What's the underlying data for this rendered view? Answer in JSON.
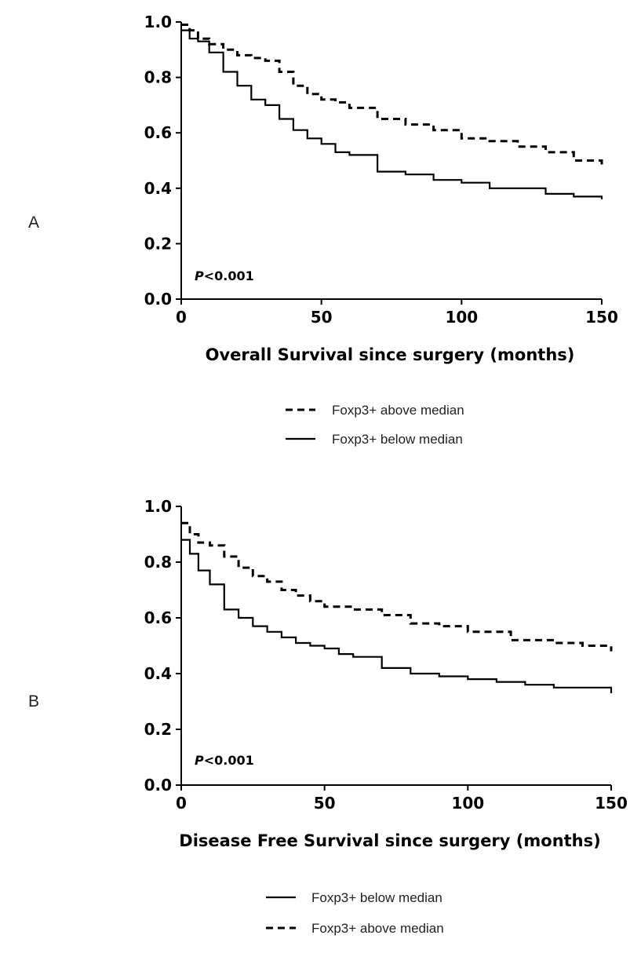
{
  "chart_data": [
    {
      "type": "line",
      "panel": "A",
      "xlabel": "Overall Survival since surgery (months)",
      "ylabel": "",
      "xlim": [
        0,
        150
      ],
      "ylim": [
        0,
        1.0
      ],
      "x_ticks": [
        "0",
        "50",
        "100",
        "150"
      ],
      "y_ticks": [
        "0.0",
        "0.2",
        "0.4",
        "0.6",
        "0.8",
        "1.0"
      ],
      "annotation": {
        "p_italic": "P",
        "p_value": "<0.001"
      },
      "legend_position": "below",
      "series": [
        {
          "name": "Foxp3+ above median",
          "style": "dashed",
          "x": [
            0,
            3,
            6,
            10,
            15,
            20,
            25,
            30,
            35,
            40,
            45,
            50,
            55,
            60,
            70,
            80,
            90,
            100,
            110,
            120,
            130,
            140,
            150
          ],
          "y": [
            0.99,
            0.97,
            0.94,
            0.92,
            0.9,
            0.88,
            0.87,
            0.86,
            0.82,
            0.77,
            0.74,
            0.72,
            0.71,
            0.69,
            0.65,
            0.63,
            0.61,
            0.58,
            0.57,
            0.55,
            0.53,
            0.5,
            0.48
          ]
        },
        {
          "name": "Foxp3+ below median",
          "style": "solid",
          "x": [
            0,
            3,
            6,
            10,
            15,
            20,
            25,
            30,
            35,
            40,
            45,
            50,
            55,
            60,
            70,
            80,
            90,
            100,
            110,
            120,
            130,
            140,
            150
          ],
          "y": [
            0.97,
            0.94,
            0.93,
            0.89,
            0.82,
            0.77,
            0.72,
            0.7,
            0.65,
            0.61,
            0.58,
            0.56,
            0.53,
            0.52,
            0.46,
            0.45,
            0.43,
            0.42,
            0.4,
            0.4,
            0.38,
            0.37,
            0.36
          ]
        }
      ],
      "legend": [
        "Foxp3+ above median",
        "Foxp3+ below median"
      ]
    },
    {
      "type": "line",
      "panel": "B",
      "xlabel": "Disease Free Survival since surgery (months)",
      "ylabel": "",
      "xlim": [
        0,
        150
      ],
      "ylim": [
        0,
        1.0
      ],
      "x_ticks": [
        "0",
        "50",
        "100",
        "150"
      ],
      "y_ticks": [
        "0.0",
        "0.2",
        "0.4",
        "0.6",
        "0.8",
        "1.0"
      ],
      "annotation": {
        "p_italic": "P",
        "p_value": "<0.001"
      },
      "legend_position": "below",
      "series": [
        {
          "name": "Foxp3+ above median",
          "style": "dashed",
          "x": [
            0,
            3,
            6,
            10,
            15,
            20,
            25,
            30,
            35,
            40,
            45,
            50,
            60,
            70,
            80,
            90,
            100,
            110,
            115,
            120,
            130,
            140,
            150
          ],
          "y": [
            0.94,
            0.9,
            0.87,
            0.86,
            0.82,
            0.78,
            0.75,
            0.73,
            0.7,
            0.68,
            0.66,
            0.64,
            0.63,
            0.61,
            0.58,
            0.57,
            0.55,
            0.55,
            0.52,
            0.52,
            0.51,
            0.5,
            0.48
          ]
        },
        {
          "name": "Foxp3+ below median",
          "style": "solid",
          "x": [
            0,
            3,
            6,
            10,
            15,
            20,
            25,
            30,
            35,
            40,
            45,
            50,
            55,
            60,
            70,
            80,
            90,
            100,
            110,
            120,
            130,
            140,
            150
          ],
          "y": [
            0.88,
            0.83,
            0.77,
            0.72,
            0.63,
            0.6,
            0.57,
            0.55,
            0.53,
            0.51,
            0.5,
            0.49,
            0.47,
            0.46,
            0.42,
            0.4,
            0.39,
            0.38,
            0.37,
            0.36,
            0.35,
            0.35,
            0.33
          ]
        }
      ],
      "legend": [
        "Foxp3+ below median",
        "Foxp3+ above median"
      ]
    }
  ],
  "panels": [
    {
      "label": "A"
    },
    {
      "label": "B"
    }
  ],
  "colors": {
    "line": "#000000",
    "text": "#222222"
  }
}
